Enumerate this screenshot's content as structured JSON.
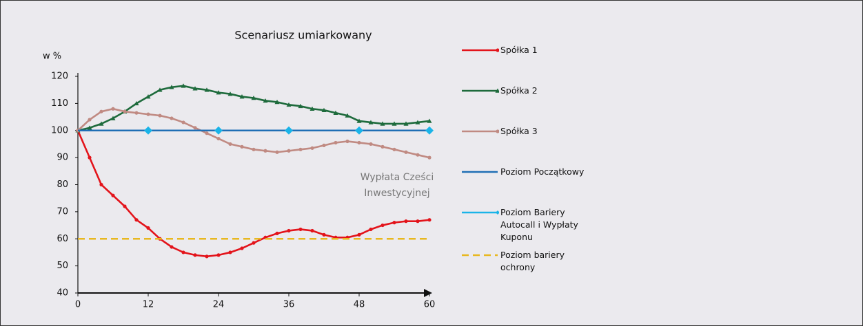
{
  "chart_data": {
    "type": "line",
    "title": "Scenariusz umiarkowany",
    "y_label": "w %",
    "annotation": [
      "Wypłata Cześci",
      "Inwestycyjnej"
    ],
    "xlim": [
      0,
      60
    ],
    "xticks": [
      0,
      12,
      24,
      36,
      48,
      60
    ],
    "ylim": [
      40,
      120
    ],
    "yticks": [
      40,
      50,
      60,
      70,
      80,
      90,
      100,
      110,
      120
    ],
    "grid": false,
    "series": [
      {
        "name": "Spółka 1",
        "color": "#e3141b",
        "marker": "circle",
        "line_style": "solid",
        "x": [
          0,
          2,
          4,
          6,
          8,
          10,
          12,
          14,
          16,
          18,
          20,
          22,
          24,
          26,
          28,
          30,
          32,
          34,
          36,
          38,
          40,
          42,
          44,
          46,
          48,
          50,
          52,
          54,
          56,
          58,
          60
        ],
        "values": [
          100,
          90,
          80,
          76,
          72,
          67,
          64,
          60,
          57,
          55,
          54,
          53.5,
          54,
          55,
          56.5,
          58.5,
          60.5,
          62,
          63,
          63.5,
          63,
          61.5,
          60.5,
          60.5,
          61.5,
          63.5,
          65,
          66,
          66.5,
          66.5,
          67
        ]
      },
      {
        "name": "Spółka 2",
        "color": "#1e6b3c",
        "marker": "triangle",
        "line_style": "solid",
        "x": [
          0,
          2,
          4,
          6,
          8,
          10,
          12,
          14,
          16,
          18,
          20,
          22,
          24,
          26,
          28,
          30,
          32,
          34,
          36,
          38,
          40,
          42,
          44,
          46,
          48,
          50,
          52,
          54,
          56,
          58,
          60
        ],
        "values": [
          100,
          101,
          102.5,
          104.5,
          107,
          110,
          112.5,
          115,
          116,
          116.5,
          115.5,
          115,
          114,
          113.5,
          112.5,
          112,
          111,
          110.5,
          109.5,
          109,
          108,
          107.5,
          106.5,
          105.5,
          103.5,
          103,
          102.5,
          102.5,
          102.5,
          103,
          103.5
        ]
      },
      {
        "name": "Spółka 3",
        "color": "#c08a82",
        "marker": "circle",
        "line_style": "solid",
        "x": [
          0,
          2,
          4,
          6,
          8,
          10,
          12,
          14,
          16,
          18,
          20,
          22,
          24,
          26,
          28,
          30,
          32,
          34,
          36,
          38,
          40,
          42,
          44,
          46,
          48,
          50,
          52,
          54,
          56,
          58,
          60
        ],
        "values": [
          100,
          104,
          107,
          108,
          107,
          106.5,
          106,
          105.5,
          104.5,
          103,
          101,
          99,
          97,
          95,
          94,
          93,
          92.5,
          92,
          92.5,
          93,
          93.5,
          94.5,
          95.5,
          96,
          95.5,
          95,
          94,
          93,
          92,
          91,
          90
        ]
      },
      {
        "name": "Poziom Początkowy",
        "color": "#1f6fb5",
        "marker": "none",
        "line_style": "solid",
        "x": [
          0,
          60
        ],
        "values": [
          100,
          100
        ]
      },
      {
        "name": "Poziom Bariery Autocall i Wypłaty Kuponu",
        "color": "#1ab4e8",
        "marker": "diamond",
        "line_style": "none",
        "x": [
          12,
          24,
          36,
          48,
          60
        ],
        "values": [
          100,
          100,
          100,
          100,
          100
        ]
      },
      {
        "name": "Poziom bariery ochrony",
        "color": "#e8b820",
        "marker": "none",
        "line_style": "dashed",
        "x": [
          0,
          60
        ],
        "values": [
          60,
          60
        ]
      }
    ]
  }
}
